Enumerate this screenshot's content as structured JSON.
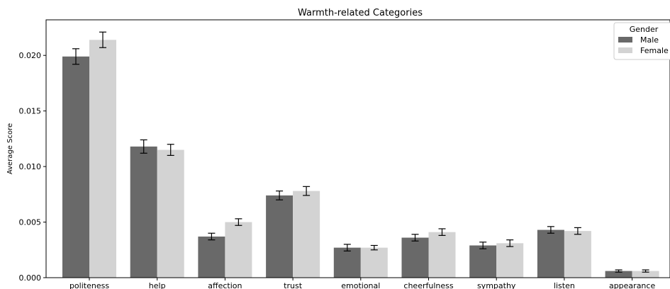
{
  "chart_data": {
    "type": "bar",
    "title": "Warmth-related Categories",
    "xlabel": "",
    "ylabel": "Average Score",
    "ylim": [
      0,
      0.0232
    ],
    "yticks": [
      "0.000",
      "0.005",
      "0.010",
      "0.015",
      "0.020"
    ],
    "categories": [
      "politeness",
      "help",
      "affection",
      "trust",
      "emotional",
      "cheerfulness",
      "sympathy",
      "listen",
      "appearance"
    ],
    "legend": {
      "title": "Gender",
      "placement": "top-right"
    },
    "series": [
      {
        "name": "Male",
        "color": "#696969",
        "values": [
          0.0199,
          0.0118,
          0.0037,
          0.0074,
          0.0027,
          0.0036,
          0.0029,
          0.0043,
          0.0006
        ],
        "errors": [
          0.0007,
          0.0006,
          0.0003,
          0.0004,
          0.0003,
          0.0003,
          0.0003,
          0.0003,
          0.0001
        ]
      },
      {
        "name": "Female",
        "color": "#d3d3d3",
        "values": [
          0.0214,
          0.0115,
          0.005,
          0.0078,
          0.0027,
          0.0041,
          0.0031,
          0.0042,
          0.0006
        ],
        "errors": [
          0.0007,
          0.0005,
          0.0003,
          0.0004,
          0.0002,
          0.0003,
          0.0003,
          0.0003,
          0.0001
        ]
      }
    ],
    "grid": false
  }
}
